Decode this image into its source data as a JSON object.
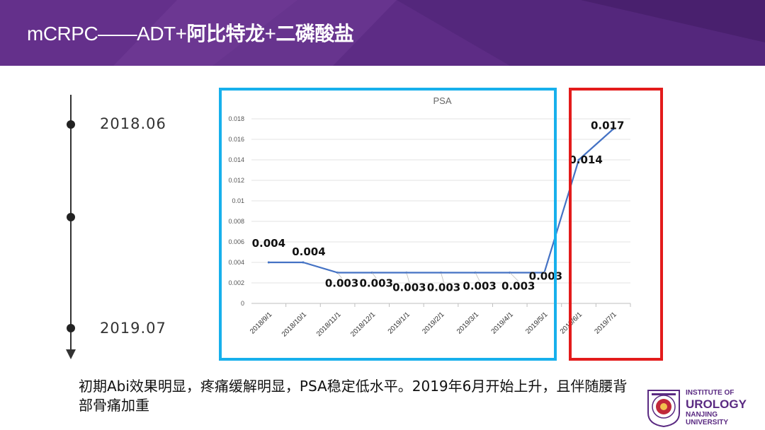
{
  "header": {
    "title_prefix": "mCRPC——ADT+",
    "title_bold1": "阿比特龙",
    "title_plus": "+",
    "title_bold2": "二磷酸盐"
  },
  "timeline": {
    "labels": [
      "2018.06",
      "2019.07"
    ]
  },
  "chart_data": {
    "type": "line",
    "title": "PSA",
    "categories": [
      "2018/9/1",
      "2018/10/1",
      "2018/11/1",
      "2018/12/1",
      "2019/1/1",
      "2019/2/1",
      "2019/3/1",
      "2019/4/1",
      "2019/5/1",
      "2019/6/1",
      "2019/7/1"
    ],
    "series": [
      {
        "values": [
          0.004,
          0.004,
          0.003,
          0.003,
          0.003,
          0.003,
          0.003,
          0.003,
          0.003,
          0.014,
          0.017
        ]
      }
    ],
    "data_labels": [
      "0.004",
      "0.004",
      "0.003",
      "0.003",
      "0.003",
      "0.003",
      "0.003",
      "0.003",
      "0.003",
      "0.014",
      "0.017"
    ],
    "yticks": [
      "0",
      "0.002",
      "0.004",
      "0.006",
      "0.008",
      "0.01",
      "0.012",
      "0.014",
      "0.016",
      "0.018"
    ],
    "ylim": [
      0,
      0.018
    ],
    "grid": true,
    "line_color": "#4472c4",
    "blue_box_color": "#17b0ec",
    "red_box_color": "#e31b1b"
  },
  "caption": "初期Abi效果明显，疼痛缓解明显，PSA稳定低水平。2019年6月开始上升，且伴随腰背部骨痛加重",
  "logo": {
    "line1": "INSTITUTE OF",
    "line2": "UROLOGY",
    "line3": "NANJING",
    "line4": "UNIVERSITY"
  },
  "colors": {
    "banner": "#5a2a82",
    "logo": "#5a2a82"
  }
}
